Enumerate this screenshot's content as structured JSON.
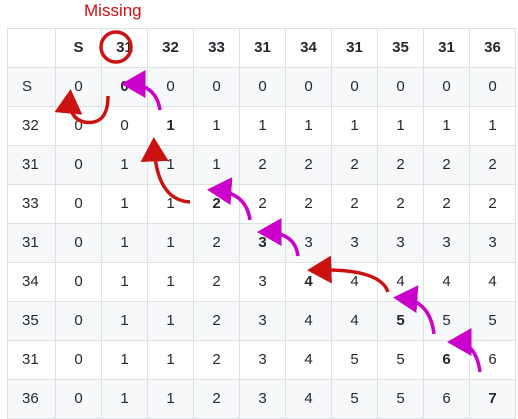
{
  "missing_label": "Missing",
  "colors": {
    "red": "#cc1111",
    "magenta": "#cc00cc"
  },
  "header": [
    "",
    "S",
    "31",
    "32",
    "33",
    "31",
    "34",
    "31",
    "35",
    "31",
    "36"
  ],
  "rows": [
    [
      "S",
      "0",
      "0",
      "0",
      "0",
      "0",
      "0",
      "0",
      "0",
      "0",
      "0"
    ],
    [
      "32",
      "0",
      "0",
      "1",
      "1",
      "1",
      "1",
      "1",
      "1",
      "1",
      "1"
    ],
    [
      "31",
      "0",
      "1",
      "1",
      "1",
      "2",
      "2",
      "2",
      "2",
      "2",
      "2"
    ],
    [
      "33",
      "0",
      "1",
      "1",
      "2",
      "2",
      "2",
      "2",
      "2",
      "2",
      "2"
    ],
    [
      "31",
      "0",
      "1",
      "1",
      "2",
      "3",
      "3",
      "3",
      "3",
      "3",
      "3"
    ],
    [
      "34",
      "0",
      "1",
      "1",
      "2",
      "3",
      "4",
      "4",
      "4",
      "4",
      "4"
    ],
    [
      "35",
      "0",
      "1",
      "1",
      "2",
      "3",
      "4",
      "4",
      "5",
      "5",
      "5"
    ],
    [
      "31",
      "0",
      "1",
      "1",
      "2",
      "3",
      "4",
      "5",
      "5",
      "6",
      "6"
    ],
    [
      "36",
      "0",
      "1",
      "1",
      "2",
      "3",
      "4",
      "5",
      "5",
      "6",
      "7"
    ]
  ],
  "bold_cells": [
    [
      0,
      2
    ],
    [
      1,
      3
    ],
    [
      3,
      4
    ],
    [
      4,
      5
    ],
    [
      5,
      6
    ],
    [
      6,
      8
    ],
    [
      7,
      9
    ],
    [
      8,
      10
    ]
  ]
}
